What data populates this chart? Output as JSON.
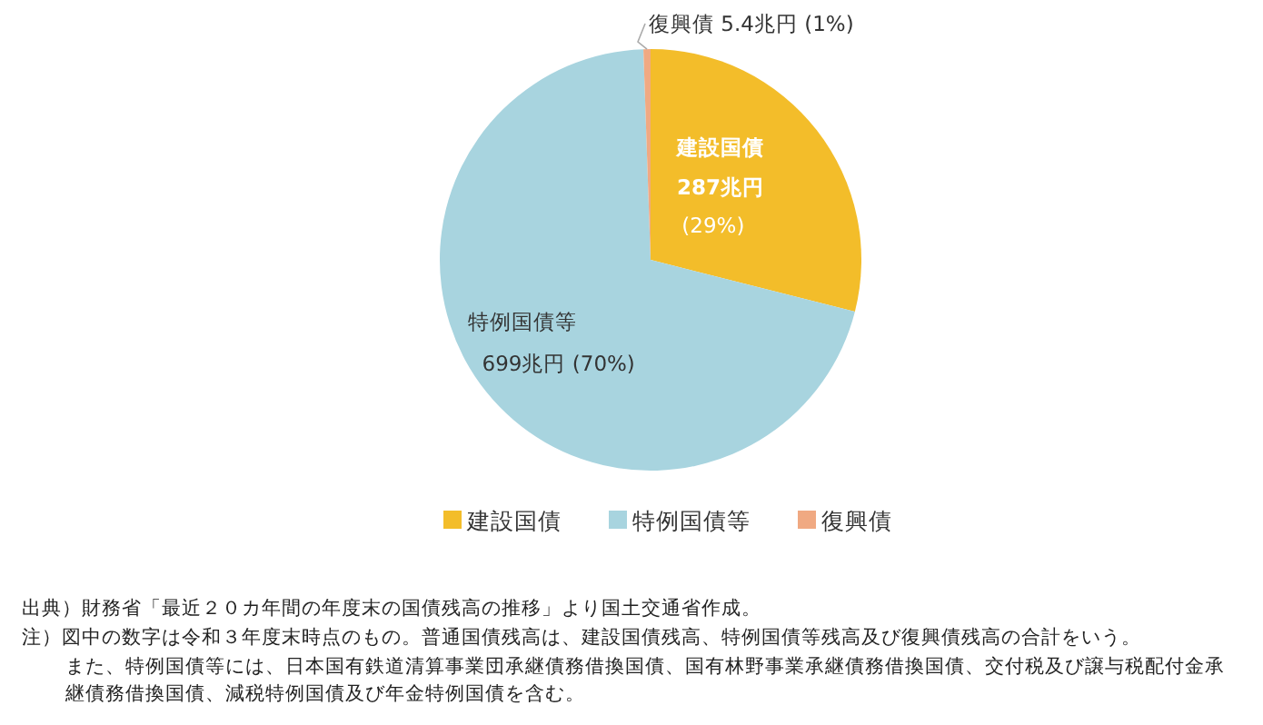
{
  "chart_data": {
    "type": "pie",
    "categories": [
      "建設国債",
      "特例国債等",
      "復興債"
    ],
    "values": [
      287,
      699,
      5.4
    ],
    "colors": [
      "#f3bd2a",
      "#a8d4df",
      "#f0a982"
    ],
    "value_labels": [
      "287兆円 (29%)",
      "699兆円 (70%)",
      "5.4兆円 (1%)"
    ],
    "legend": "bottom",
    "annotations": [
      "出典）財務省「最近２０カ年間の年度末の国債残高の推移」より国土交通省作成。",
      "注）図中の数字は令和３年度末時点のもの。普通国債残高は、建設国債残高、特例国債等残高及び復興債残高の合計をいう。",
      "また、特例国債等には、日本国有鉄道清算事業団承継債務借換国債、国有林野事業承継債務借換国債、交付税及び譲与税配付金承継債務借換国債、減税特例国債及び年金特例国債を含む。"
    ]
  }
}
